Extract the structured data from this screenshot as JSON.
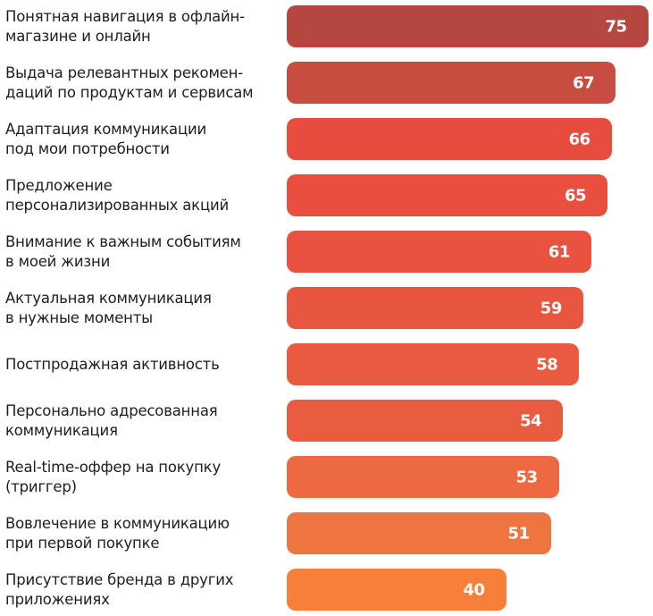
{
  "chart_data": {
    "type": "bar",
    "orientation": "horizontal",
    "categories": [
      "Понятная навигация в офлайн-\nмагазине и онлайн",
      "Выдача релевантных рекомен-\nдаций по продуктам и сервисам",
      "Адаптация коммуникации\nпод мои потребности",
      "Предложение\nперсонализированных акций",
      "Внимание к важным событиям\nв моей жизни",
      "Актуальная коммуникация\nв нужные моменты",
      "Постпродажная активность",
      "Персонально адресованная\nкоммуникация",
      "Real-time-оффер на покупку\n(триггер)",
      "Вовлечение в коммуникацию\nпри первой покупке",
      "Присутствие бренда в других\nприложениях"
    ],
    "values": [
      75,
      67,
      66,
      65,
      61,
      59,
      58,
      54,
      53,
      51,
      40
    ],
    "data_labels": [
      "75",
      "67",
      "66",
      "65",
      "61",
      "59",
      "58",
      "54",
      "53",
      "51",
      "40"
    ],
    "colors": [
      "#b5473e",
      "#c84d41",
      "#e84c3f",
      "#e84f3f",
      "#e9523f",
      "#e95640",
      "#ea5a40",
      "#e95c40",
      "#ec6942",
      "#ee7540",
      "#f77f3a"
    ],
    "grid": false,
    "legend": "none"
  }
}
